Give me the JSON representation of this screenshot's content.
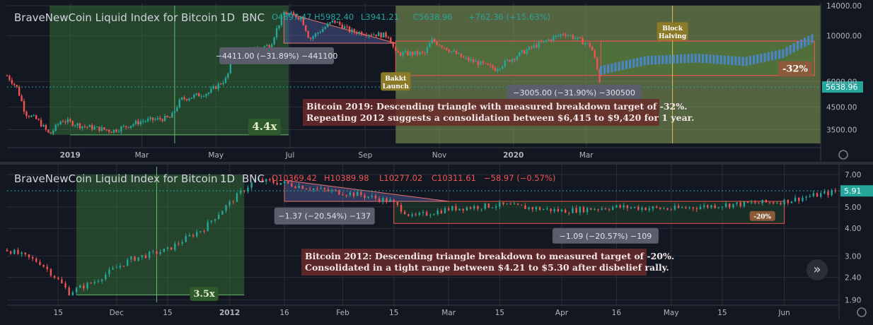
{
  "colors": {
    "background": "#131722",
    "up": "#26a69a",
    "down": "#ef5350",
    "blue": "#4a86c4",
    "grid": "#2a2e39",
    "axis_text": "#b2b5be",
    "green_zone": "#3a7d3a",
    "olive_zone": "#8aa25a"
  },
  "chart_data": [
    {
      "id": "bitcoin-2019",
      "type": "candlestick",
      "title_parts": [
        "BraveNewCoin Liquid Index for Bitcoin",
        "1D",
        "BNC"
      ],
      "ohlc": {
        "o": "O4897.47",
        "h": "H5982.40",
        "l": "L3941.21",
        "c": "C5638.96",
        "chg": "+762.36 (+15.63%)"
      },
      "last_price": "5638.96",
      "y_ticks": [
        "14000.00",
        "10000.00",
        "6000.00",
        "4500.00",
        "3500.00"
      ],
      "y_tick_values": [
        14000,
        10000,
        6000,
        4500,
        3500
      ],
      "y_scale": "log",
      "ylim": [
        3000,
        14000
      ],
      "x_ticks": [
        "2019",
        "Mar",
        "May",
        "Jul",
        "Sep",
        "Nov",
        "2020",
        "Mar"
      ],
      "x_tick_dates": [
        "2019-01-01",
        "2019-03-01",
        "2019-05-01",
        "2019-07-01",
        "2019-09-01",
        "2019-11-01",
        "2020-01-01",
        "2020-03-01"
      ],
      "xlim": [
        "2018-11-10",
        "2020-09-10"
      ],
      "price_path": [
        [
          "2018-11-10",
          6400
        ],
        [
          "2018-11-18",
          5600
        ],
        [
          "2018-11-25",
          4200
        ],
        [
          "2018-12-05",
          3900
        ],
        [
          "2018-12-15",
          3300
        ],
        [
          "2018-12-25",
          3900
        ],
        [
          "2019-01-10",
          3650
        ],
        [
          "2019-02-05",
          3450
        ],
        [
          "2019-03-01",
          3850
        ],
        [
          "2019-03-25",
          4000
        ],
        [
          "2019-04-02",
          4900
        ],
        [
          "2019-04-25",
          5300
        ],
        [
          "2019-05-10",
          6200
        ],
        [
          "2019-05-15",
          7900
        ],
        [
          "2019-05-30",
          8600
        ],
        [
          "2019-06-15",
          9000
        ],
        [
          "2019-06-26",
          12900
        ],
        [
          "2019-07-10",
          12300
        ],
        [
          "2019-07-17",
          9600
        ],
        [
          "2019-08-06",
          11800
        ],
        [
          "2019-08-20",
          10500
        ],
        [
          "2019-09-20",
          10000
        ],
        [
          "2019-09-26",
          8200
        ],
        [
          "2019-10-20",
          8200
        ],
        [
          "2019-10-26",
          9500
        ],
        [
          "2019-11-20",
          7800
        ],
        [
          "2019-12-17",
          6900
        ],
        [
          "2020-01-15",
          8700
        ],
        [
          "2020-02-12",
          10300
        ],
        [
          "2020-03-05",
          8900
        ],
        [
          "2020-03-13",
          5638.96
        ]
      ],
      "projection": {
        "start": "2020-03-13",
        "end": "2020-09-05",
        "low": 6415,
        "high": 9420,
        "path": [
          [
            "2020-03-13",
            6800
          ],
          [
            "2020-04-20",
            7600
          ],
          [
            "2020-06-01",
            7800
          ],
          [
            "2020-07-10",
            7500
          ],
          [
            "2020-08-10",
            8200
          ],
          [
            "2020-09-05",
            9800
          ]
        ]
      },
      "zones": [
        {
          "kind": "green",
          "x0": "2018-12-15",
          "x1": "2019-06-30",
          "y0": 3300,
          "y1": 14000
        },
        {
          "kind": "olive",
          "x0": "2019-09-26",
          "x1": "2020-09-10",
          "y0": 3000,
          "y1": 14000
        }
      ],
      "triangle": {
        "x0": "2019-06-26",
        "x1": "2019-09-26",
        "top_y0": 13000,
        "top_y1": 9200,
        "bottom_y": 9200
      },
      "range_box": {
        "x0": "2019-09-26",
        "x1": "2020-09-05",
        "low": 6415,
        "high": 9420
      },
      "range_box_2": {
        "x0": "2020-03-13",
        "x1": "2020-09-05",
        "low": 6415,
        "high": 9420
      },
      "vlines": [
        {
          "x": "2019-03-28",
          "color": "#66bb6a"
        },
        {
          "x": "2020-05-11",
          "color": "#d4c44a"
        }
      ],
      "measure_line": {
        "x0": "2019-01-01",
        "x1": "2019-06-30",
        "y": 3300
      },
      "labels": {
        "bakkt": {
          "text": [
            "Bakkt",
            "Launch"
          ],
          "x": "2019-09-26",
          "y": 6000
        },
        "halving": {
          "text": [
            "Block",
            "Halving"
          ],
          "x": "2020-05-11",
          "y": 10500
        },
        "gain": {
          "text": "4.4x",
          "x": "2019-06-10",
          "y": 3600
        },
        "target": {
          "text": "-32%",
          "x": "2020-08-20",
          "y": 6900
        },
        "measure_1": {
          "text": "−4411.00 (−31.89%) −441100",
          "x": "2019-06-20",
          "y": 8000
        },
        "measure_2": {
          "text": "−3005.00 (−31.90%) −300500",
          "x": "2020-02-20",
          "y": 5300
        }
      },
      "annotation": [
        "Bitcoin 2019: Descending triangle with measured breakdown target of -32%.",
        "Repeating 2012 suggests a consolidation between $6,415 to $9,420 for 1 year."
      ]
    },
    {
      "id": "bitcoin-2012",
      "type": "candlestick",
      "title_parts": [
        "BraveNewCoin Liquid Index for Bitcoin",
        "1D",
        "BNC"
      ],
      "ohlc": {
        "o": "O10369.42",
        "h": "H10389.98",
        "l": "L10277.02",
        "c": "C10311.61",
        "chg": "−58.97 (−0.57%)"
      },
      "last_price": "5.91",
      "y_ticks": [
        "7.00",
        "5.00",
        "4.00",
        "3.00",
        "2.40",
        "1.90"
      ],
      "y_tick_values": [
        7,
        5,
        4,
        3,
        2.4,
        1.9
      ],
      "y_scale": "log",
      "ylim": [
        1.85,
        7.6
      ],
      "x_ticks": [
        "15",
        "Dec",
        "15",
        "2012",
        "16",
        "Feb",
        "15",
        "Mar",
        "15",
        "Apr",
        "16",
        "May",
        "15",
        "Jun"
      ],
      "x_tick_dates": [
        "2011-11-15",
        "2011-12-01",
        "2011-12-15",
        "2012-01-01",
        "2012-01-16",
        "2012-02-01",
        "2012-02-15",
        "2012-03-01",
        "2012-03-15",
        "2012-04-01",
        "2012-04-16",
        "2012-05-01",
        "2012-05-15",
        "2012-06-01"
      ],
      "xlim": [
        "2011-11-01",
        "2012-06-16"
      ],
      "price_path": [
        [
          "2011-11-01",
          3.2
        ],
        [
          "2011-11-10",
          2.8
        ],
        [
          "2011-11-18",
          2.05
        ],
        [
          "2011-11-25",
          2.3
        ],
        [
          "2011-12-05",
          2.9
        ],
        [
          "2011-12-15",
          3.2
        ],
        [
          "2011-12-25",
          4.0
        ],
        [
          "2012-01-01",
          5.2
        ],
        [
          "2012-01-08",
          6.6
        ],
        [
          "2012-01-16",
          6.4
        ],
        [
          "2012-01-25",
          6.0
        ],
        [
          "2012-02-05",
          5.7
        ],
        [
          "2012-02-14",
          5.3
        ],
        [
          "2012-02-20",
          4.5
        ],
        [
          "2012-03-01",
          4.9
        ],
        [
          "2012-03-15",
          5.1
        ],
        [
          "2012-04-01",
          4.8
        ],
        [
          "2012-04-16",
          5.0
        ],
        [
          "2012-05-01",
          4.9
        ],
        [
          "2012-05-15",
          5.1
        ],
        [
          "2012-06-01",
          5.3
        ],
        [
          "2012-06-16",
          5.91
        ]
      ],
      "zones": [
        {
          "kind": "green",
          "x0": "2011-11-20",
          "x1": "2012-01-05",
          "y0": 2.0,
          "y1": 7.0
        },
        {
          "kind": "green-dark",
          "x0": "2012-02-15",
          "x1": "2012-06-01",
          "y0": 4.21,
          "y1": 5.3
        }
      ],
      "triangle": {
        "x0": "2012-01-16",
        "x1": "2012-03-01",
        "top_y0": 6.6,
        "top_y1": 5.3,
        "bottom_y": 5.3
      },
      "range_box": {
        "x0": "2012-02-15",
        "x1": "2012-06-01",
        "low": 4.21,
        "high": 5.3
      },
      "vlines": [
        {
          "x": "2011-12-12",
          "color": "#66bb6a"
        }
      ],
      "measure_line": {
        "x0": "2011-11-20",
        "x1": "2012-01-05",
        "y": 2.0
      },
      "labels": {
        "gain": {
          "text": "3.5x",
          "x": "2011-12-25",
          "y": 2.02
        },
        "target": {
          "text": "-20%",
          "x": "2012-05-26",
          "y": 4.55
        },
        "measure_1": {
          "text": "−1.37 (−20.54%) −137",
          "x": "2012-01-27",
          "y": 4.55
        },
        "measure_2": {
          "text": "−1.09 (−20.57%) −109",
          "x": "2012-04-13",
          "y": 3.7
        }
      },
      "annotation": [
        "Bitcoin 2012: Descending triangle breakdown to measured target of -20%.",
        "Consolidated in a tight range between $4.21 to $5.30 after disbelief rally."
      ]
    }
  ]
}
